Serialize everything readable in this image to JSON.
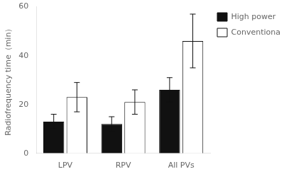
{
  "chart_data": {
    "type": "bar",
    "categories": [
      "LPV",
      "RPV",
      "All PVs"
    ],
    "series": [
      {
        "name": "High power",
        "color": "#111111",
        "values": [
          13,
          12,
          26
        ],
        "errors": [
          3,
          3,
          5
        ]
      },
      {
        "name": "Conventional power",
        "color": "#ffffff",
        "values": [
          23,
          21,
          46
        ],
        "errors": [
          6,
          5,
          11
        ]
      }
    ],
    "ylabel": "Radiofrequency time（min）",
    "ylim": [
      0,
      60
    ],
    "yticks": [
      0,
      20,
      40,
      60
    ],
    "grid": false,
    "legend": "right"
  }
}
